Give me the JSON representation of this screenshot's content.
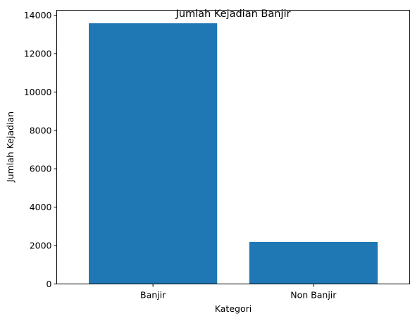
{
  "chart_data": {
    "type": "bar",
    "title": "Jumlah Kejadian Banjir",
    "xlabel": "Kategori",
    "ylabel": "Jumlah Kejadian",
    "categories": [
      "Banjir",
      "Non Banjir"
    ],
    "values": [
      13580,
      2190
    ],
    "ylim": [
      0,
      14260
    ],
    "yticks": [
      0,
      2000,
      4000,
      6000,
      8000,
      10000,
      12000,
      14000
    ],
    "grid": false,
    "bar_color": "#1f77b4"
  }
}
